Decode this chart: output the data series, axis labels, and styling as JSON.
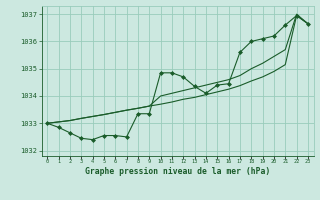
{
  "title": "Graphe pression niveau de la mer (hPa)",
  "x": [
    0,
    1,
    2,
    3,
    4,
    5,
    6,
    7,
    8,
    9,
    10,
    11,
    12,
    13,
    14,
    15,
    16,
    17,
    18,
    19,
    20,
    21,
    22,
    23
  ],
  "line_zigzag": [
    1033.0,
    1032.85,
    1032.65,
    1032.45,
    1032.4,
    1032.55,
    1032.55,
    1032.5,
    1033.35,
    1033.35,
    1034.85,
    1034.85,
    1034.7,
    1034.35,
    1034.1,
    1034.4,
    1034.45,
    1035.6,
    1036.0,
    1036.1,
    1036.2,
    1036.6,
    1036.95,
    1036.65
  ],
  "line_smooth": [
    1033.0,
    1033.05,
    1033.1,
    1033.18,
    1033.25,
    1033.32,
    1033.4,
    1033.48,
    1033.55,
    1033.63,
    1033.7,
    1033.78,
    1033.88,
    1033.95,
    1034.05,
    1034.15,
    1034.25,
    1034.38,
    1034.55,
    1034.7,
    1034.9,
    1035.15,
    1036.95,
    1036.65
  ],
  "line_upper": [
    1033.0,
    1033.05,
    1033.1,
    1033.18,
    1033.25,
    1033.32,
    1033.4,
    1033.48,
    1033.55,
    1033.63,
    1034.0,
    1034.1,
    1034.2,
    1034.3,
    1034.4,
    1034.5,
    1034.6,
    1034.75,
    1035.0,
    1035.2,
    1035.45,
    1035.7,
    1037.0,
    1036.65
  ],
  "ylim": [
    1031.8,
    1037.3
  ],
  "yticks": [
    1032,
    1033,
    1034,
    1035,
    1036,
    1037
  ],
  "xlim": [
    -0.5,
    23.5
  ],
  "bg_color": "#cce8e0",
  "grid_color": "#99ccbb",
  "line_color": "#1a5c2a",
  "marker_color": "#1a5c2a",
  "text_color": "#1a5c2a",
  "title_color": "#1a5c2a"
}
